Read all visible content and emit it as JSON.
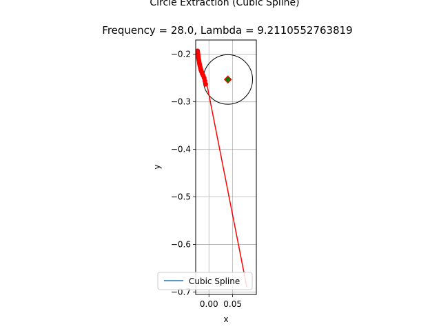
{
  "chart_data": {
    "type": "line",
    "title": "Circle Extraction (Cubic Spline)",
    "subtitle": "Frequency = 28.0, Lambda = 9.2110552763819",
    "xlabel": "x",
    "ylabel": "y",
    "xlim": [
      -0.028,
      0.1
    ],
    "ylim": [
      -0.705,
      -0.17
    ],
    "xticks": [
      0.0,
      0.05
    ],
    "xtick_labels": [
      "0.00",
      "0.05"
    ],
    "yticks": [
      -0.2,
      -0.3,
      -0.4,
      -0.5,
      -0.6,
      -0.7
    ],
    "ytick_labels": [
      "−0.2",
      "−0.3",
      "−0.4",
      "−0.5",
      "−0.6",
      "−0.7"
    ],
    "grid": true,
    "legend": {
      "placement": "lower center",
      "entries": [
        "Cubic Spline"
      ]
    },
    "colors": {
      "spline": "#1f77b4",
      "points": "#ff0000",
      "center_fill": "#008000",
      "center_edge": "#ff0000",
      "circle": "#000000",
      "grid": "#b0b0b0"
    },
    "series": [
      {
        "name": "Cubic Spline",
        "kind": "line",
        "x": [
          -0.024,
          -0.005,
          0.08
        ],
        "y": [
          -0.195,
          -0.26,
          -0.69
        ]
      },
      {
        "kind": "scatter",
        "x": [
          -0.024,
          -0.0235,
          -0.023,
          -0.0225,
          -0.022,
          -0.0212,
          -0.0205,
          -0.0198,
          -0.019,
          -0.018,
          -0.017,
          -0.0155,
          -0.014,
          -0.012,
          -0.01,
          -0.0085,
          -0.007
        ],
        "y": [
          -0.193,
          -0.197,
          -0.201,
          -0.205,
          -0.209,
          -0.213,
          -0.217,
          -0.221,
          -0.225,
          -0.229,
          -0.233,
          -0.237,
          -0.241,
          -0.245,
          -0.25,
          -0.256,
          -0.263
        ]
      },
      {
        "kind": "marker",
        "x": [
          0.04
        ],
        "y": [
          -0.253
        ]
      }
    ],
    "circle": {
      "center": [
        0.04,
        -0.253
      ],
      "radius": 0.052
    }
  }
}
